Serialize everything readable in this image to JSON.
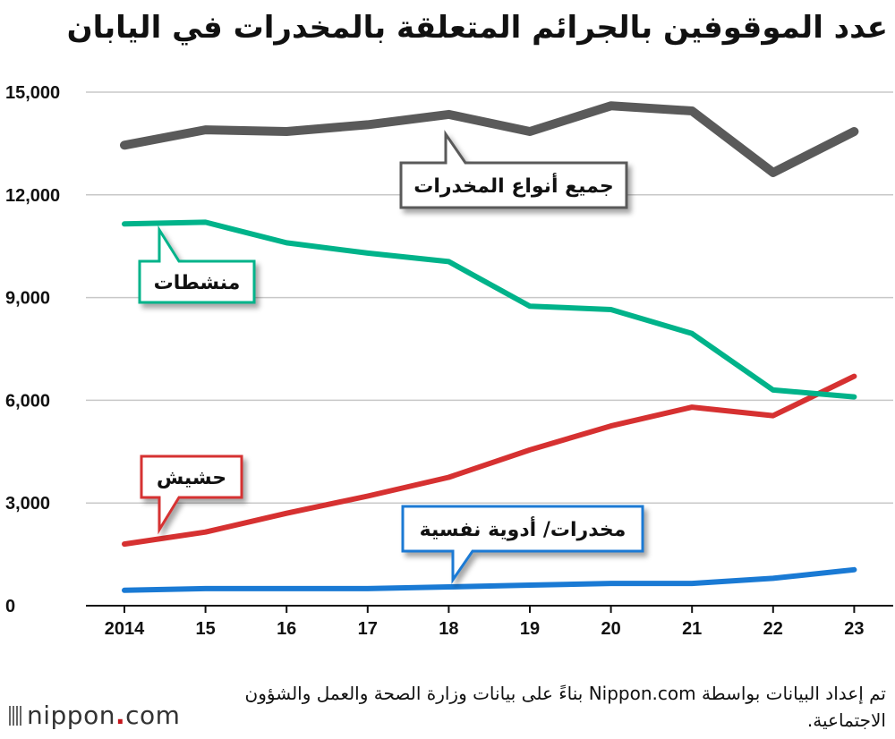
{
  "title": "عدد الموقوفين بالجرائم المتعلقة بالمخدرات في اليابان",
  "footnote": "تم إعداد البيانات بواسطة Nippon.com بناءً على بيانات وزارة الصحة والعمل والشؤون الاجتماعية.",
  "logo": {
    "name": "nippon",
    "dot": ".",
    "suffix": "com"
  },
  "chart_data": {
    "type": "line",
    "title": "عدد الموقوفين بالجرائم المتعلقة بالمخدرات في اليابان",
    "xlabel": "",
    "ylabel": "",
    "categories": [
      "2014",
      "15",
      "16",
      "17",
      "18",
      "19",
      "20",
      "21",
      "22",
      "23"
    ],
    "ylim": [
      0,
      15000
    ],
    "yticks": [
      0,
      3000,
      6000,
      9000,
      12000,
      15000
    ],
    "ytick_labels": [
      "0",
      "3,000",
      "6,000",
      "9,000",
      "12,000",
      "15,000"
    ],
    "grid": true,
    "series": [
      {
        "name": "جميع أنواع المخدرات",
        "color": "#5a5a5a",
        "values": [
          13450,
          13900,
          13850,
          14050,
          14350,
          13850,
          14600,
          14450,
          12650,
          13850
        ]
      },
      {
        "name": "منشطات",
        "color": "#00b38a",
        "values": [
          11150,
          11200,
          10600,
          10300,
          10050,
          8750,
          8650,
          7950,
          6300,
          6100
        ]
      },
      {
        "name": "حشيش",
        "color": "#d63131",
        "values": [
          1800,
          2150,
          2700,
          3200,
          3750,
          4550,
          5250,
          5800,
          5550,
          6700
        ]
      },
      {
        "name": "مخدرات/ أدوية نفسية",
        "color": "#1a7ad4",
        "values": [
          450,
          500,
          500,
          500,
          550,
          600,
          650,
          650,
          800,
          1050
        ]
      }
    ]
  }
}
